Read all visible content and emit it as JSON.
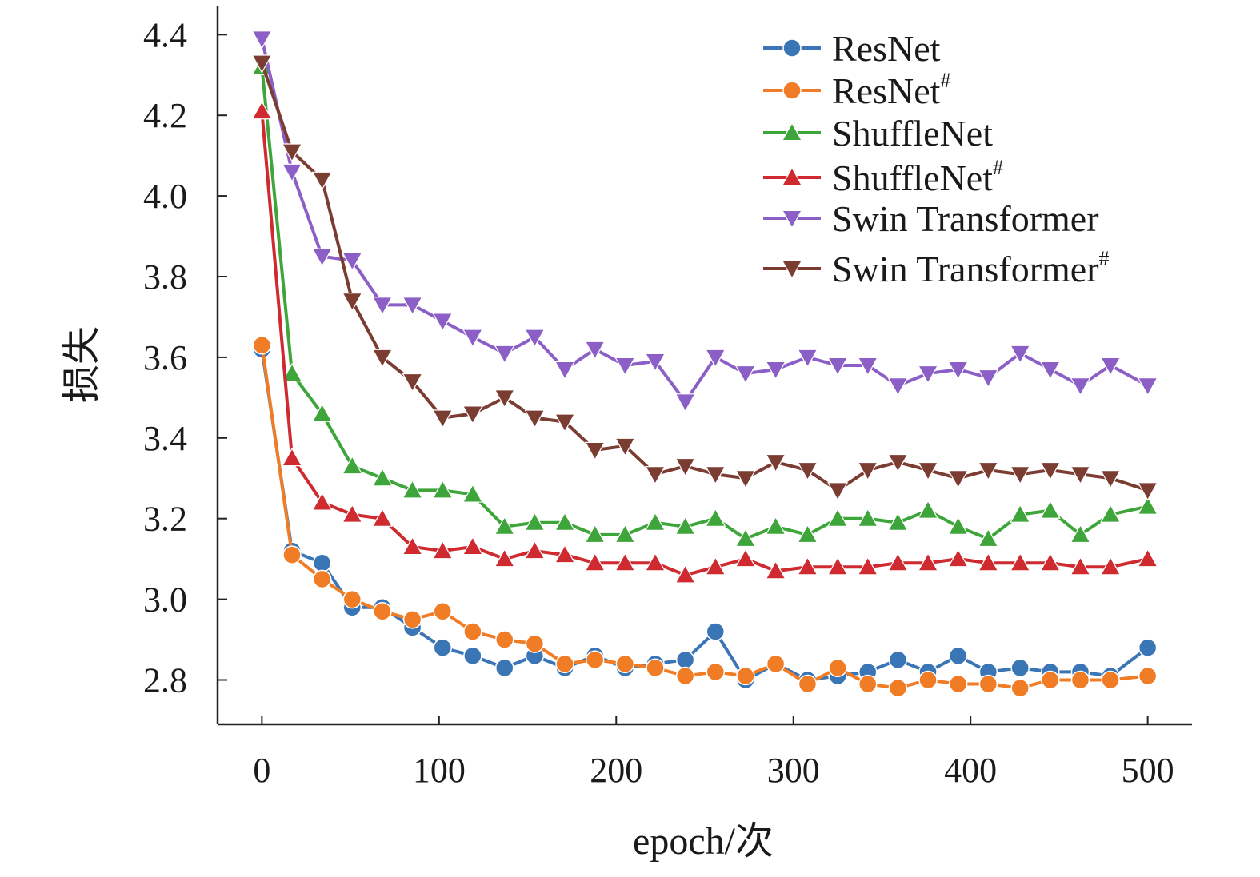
{
  "chart_data": {
    "type": "line",
    "xlabel": "epoch/次",
    "ylabel": "损失",
    "xlim": [
      -25,
      525
    ],
    "ylim": [
      2.69,
      4.47
    ],
    "x_ticks": [
      0,
      100,
      200,
      300,
      400,
      500
    ],
    "y_ticks": [
      2.8,
      3.0,
      3.2,
      3.4,
      3.6,
      3.8,
      4.0,
      4.2,
      4.4
    ],
    "x_tick_labels": [
      "0",
      "100",
      "200",
      "300",
      "400",
      "500"
    ],
    "y_tick_labels": [
      "2.8",
      "3.0",
      "3.2",
      "3.4",
      "3.6",
      "3.8",
      "4.0",
      "4.2",
      "4.4"
    ],
    "grid": false,
    "legend_position": "top-right",
    "x": [
      0,
      17,
      34,
      51,
      68,
      85,
      102,
      119,
      137,
      154,
      171,
      188,
      205,
      222,
      239,
      256,
      273,
      290,
      308,
      325,
      342,
      359,
      376,
      393,
      410,
      428,
      445,
      462,
      479,
      500
    ],
    "series": [
      {
        "name": "ResNet",
        "sup": "",
        "color": "#3a75b6",
        "marker": "circle",
        "values": [
          3.62,
          3.12,
          3.09,
          2.98,
          2.98,
          2.93,
          2.88,
          2.86,
          2.83,
          2.86,
          2.83,
          2.86,
          2.83,
          2.84,
          2.85,
          2.92,
          2.8,
          2.84,
          2.8,
          2.81,
          2.82,
          2.85,
          2.82,
          2.86,
          2.82,
          2.83,
          2.82,
          2.82,
          2.81,
          2.88
        ]
      },
      {
        "name": "ResNet",
        "sup": "#",
        "color": "#f07c26",
        "marker": "circle",
        "values": [
          3.63,
          3.11,
          3.05,
          3.0,
          2.97,
          2.95,
          2.97,
          2.92,
          2.9,
          2.89,
          2.84,
          2.85,
          2.84,
          2.83,
          2.81,
          2.82,
          2.81,
          2.84,
          2.79,
          2.83,
          2.79,
          2.78,
          2.8,
          2.79,
          2.79,
          2.78,
          2.8,
          2.8,
          2.8,
          2.81
        ]
      },
      {
        "name": "ShuffleNet",
        "sup": "",
        "color": "#3ea53a",
        "marker": "triangle-up",
        "values": [
          4.32,
          3.56,
          3.46,
          3.33,
          3.3,
          3.27,
          3.27,
          3.26,
          3.18,
          3.19,
          3.19,
          3.16,
          3.16,
          3.19,
          3.18,
          3.2,
          3.15,
          3.18,
          3.16,
          3.2,
          3.2,
          3.19,
          3.22,
          3.18,
          3.15,
          3.21,
          3.22,
          3.16,
          3.21,
          3.23
        ]
      },
      {
        "name": "ShuffleNet",
        "sup": "#",
        "color": "#cf2a2f",
        "marker": "triangle-up",
        "values": [
          4.21,
          3.35,
          3.24,
          3.21,
          3.2,
          3.13,
          3.12,
          3.13,
          3.1,
          3.12,
          3.11,
          3.09,
          3.09,
          3.09,
          3.06,
          3.08,
          3.1,
          3.07,
          3.08,
          3.08,
          3.08,
          3.09,
          3.09,
          3.1,
          3.09,
          3.09,
          3.09,
          3.08,
          3.08,
          3.1
        ]
      },
      {
        "name": "Swin Transformer",
        "sup": "",
        "color": "#8c5fc7",
        "marker": "triangle-down",
        "values": [
          4.39,
          4.06,
          3.85,
          3.84,
          3.73,
          3.73,
          3.69,
          3.65,
          3.61,
          3.65,
          3.57,
          3.62,
          3.58,
          3.59,
          3.49,
          3.6,
          3.56,
          3.57,
          3.6,
          3.58,
          3.58,
          3.53,
          3.56,
          3.57,
          3.55,
          3.61,
          3.57,
          3.53,
          3.58,
          3.53
        ]
      },
      {
        "name": "Swin Transformer",
        "sup": "#",
        "color": "#7b3d32",
        "marker": "triangle-down",
        "values": [
          4.33,
          4.11,
          4.04,
          3.74,
          3.6,
          3.54,
          3.45,
          3.46,
          3.5,
          3.45,
          3.44,
          3.37,
          3.38,
          3.31,
          3.33,
          3.31,
          3.3,
          3.34,
          3.32,
          3.27,
          3.32,
          3.34,
          3.32,
          3.3,
          3.32,
          3.31,
          3.32,
          3.31,
          3.3,
          3.27
        ]
      }
    ]
  }
}
